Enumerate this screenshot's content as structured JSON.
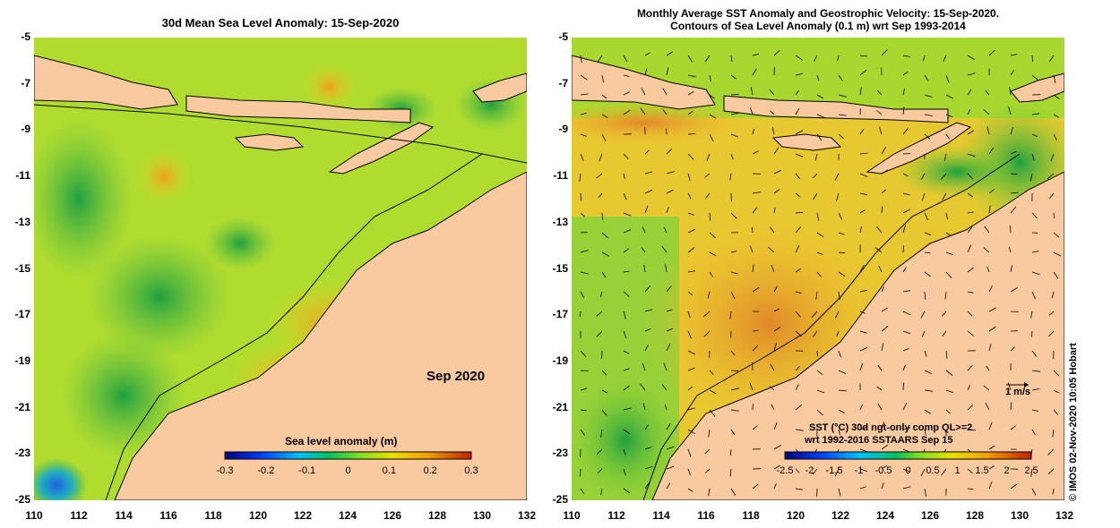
{
  "left_panel": {
    "title": "30d Mean Sea Level Anomaly: 15-Sep-2020",
    "month_label": "Sep 2020",
    "colorbar": {
      "title": "Sea level anomaly (m)",
      "ticks": [
        "-0.3",
        "-0.2",
        "-0.1",
        "0",
        "0.1",
        "0.2",
        "0.3"
      ],
      "range": [
        -0.3,
        0.3
      ]
    }
  },
  "right_panel": {
    "title_line1": "Monthly Average SST Anomaly  and Geostrophic Velocity: 15-Sep-2020.",
    "title_line2": "Contours of Sea Level Anomaly (0.1 m) wrt Sep 1993-2014",
    "velocity_scale": "1 m/s",
    "colorbar": {
      "title_line1": "SST (°C) 30d ngt-only comp QL>=2",
      "title_line2": "wrt 1992-2016 SSTAARS Sep 15",
      "ticks": [
        "-2.5",
        "-2",
        "-1.5",
        "-1",
        "-0.5",
        "0",
        "0.5",
        "1",
        "1.5",
        "2",
        "2.5"
      ],
      "range": [
        -2.5,
        2.5
      ]
    }
  },
  "axes": {
    "y_ticks": [
      "-5",
      "-7",
      "-9",
      "-11",
      "-13",
      "-15",
      "-17",
      "-19",
      "-21",
      "-23",
      "-25"
    ],
    "x_ticks": [
      "110",
      "112",
      "114",
      "116",
      "118",
      "120",
      "122",
      "124",
      "126",
      "128",
      "130",
      "132"
    ],
    "lon_range": [
      110,
      132
    ],
    "lat_range": [
      -25,
      -5
    ]
  },
  "credit": "© IMOS 02-Nov-2020 10:05 Hobart",
  "colors": {
    "land": "#f9c9a0",
    "ocean_mid": "#b8e020",
    "positive": "#f0a020",
    "negative": "#20a040"
  }
}
